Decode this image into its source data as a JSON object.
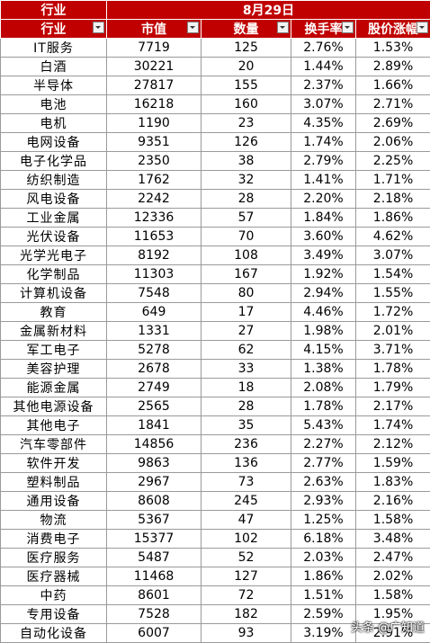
{
  "header": {
    "row1": {
      "left": "行业",
      "date": "8月29日"
    },
    "columns": [
      "行业",
      "市值",
      "数量",
      "换手率",
      "股价涨幅"
    ]
  },
  "rows": [
    [
      "IT服务",
      "7719",
      "125",
      "2.76%",
      "1.53%"
    ],
    [
      "白酒",
      "30221",
      "20",
      "1.44%",
      "2.89%"
    ],
    [
      "半导体",
      "27817",
      "155",
      "2.37%",
      "1.66%"
    ],
    [
      "电池",
      "16218",
      "160",
      "3.07%",
      "2.71%"
    ],
    [
      "电机",
      "1190",
      "23",
      "4.35%",
      "2.69%"
    ],
    [
      "电网设备",
      "9351",
      "126",
      "1.74%",
      "2.06%"
    ],
    [
      "电子化学品",
      "2350",
      "38",
      "2.79%",
      "2.25%"
    ],
    [
      "纺织制造",
      "1762",
      "32",
      "1.41%",
      "1.71%"
    ],
    [
      "风电设备",
      "2242",
      "28",
      "2.20%",
      "2.18%"
    ],
    [
      "工业金属",
      "12336",
      "57",
      "1.84%",
      "1.86%"
    ],
    [
      "光伏设备",
      "11653",
      "70",
      "3.60%",
      "4.62%"
    ],
    [
      "光学光电子",
      "8192",
      "108",
      "3.49%",
      "3.07%"
    ],
    [
      "化学制品",
      "11303",
      "167",
      "1.92%",
      "1.54%"
    ],
    [
      "计算机设备",
      "7548",
      "80",
      "2.94%",
      "1.55%"
    ],
    [
      "教育",
      "649",
      "17",
      "4.46%",
      "1.72%"
    ],
    [
      "金属新材料",
      "1331",
      "27",
      "1.98%",
      "2.01%"
    ],
    [
      "军工电子",
      "5278",
      "62",
      "4.15%",
      "3.71%"
    ],
    [
      "美容护理",
      "2678",
      "33",
      "1.38%",
      "1.78%"
    ],
    [
      "能源金属",
      "2749",
      "18",
      "2.08%",
      "1.79%"
    ],
    [
      "其他电源设备",
      "2565",
      "28",
      "1.78%",
      "2.17%"
    ],
    [
      "其他电子",
      "1841",
      "35",
      "5.43%",
      "1.74%"
    ],
    [
      "汽车零部件",
      "14856",
      "236",
      "2.27%",
      "2.12%"
    ],
    [
      "软件开发",
      "9863",
      "136",
      "2.77%",
      "1.59%"
    ],
    [
      "塑料制品",
      "2967",
      "73",
      "2.63%",
      "1.83%"
    ],
    [
      "通用设备",
      "8608",
      "245",
      "2.93%",
      "2.16%"
    ],
    [
      "物流",
      "5367",
      "47",
      "1.25%",
      "1.58%"
    ],
    [
      "消费电子",
      "15377",
      "102",
      "6.18%",
      "3.48%"
    ],
    [
      "医疗服务",
      "5487",
      "52",
      "2.03%",
      "2.47%"
    ],
    [
      "医疗器械",
      "11468",
      "127",
      "1.86%",
      "2.02%"
    ],
    [
      "中药",
      "8601",
      "72",
      "1.51%",
      "1.58%"
    ],
    [
      "专用设备",
      "7528",
      "182",
      "2.59%",
      "1.95%"
    ],
    [
      "自动化设备",
      "6007",
      "93",
      "3.19%",
      "2.91%"
    ]
  ],
  "watermark": "头条 @广知道"
}
